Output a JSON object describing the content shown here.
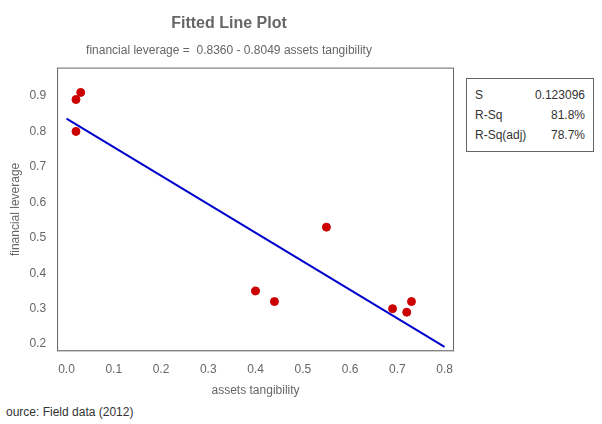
{
  "chart_data": {
    "type": "scatter",
    "title": "Fitted Line Plot",
    "subtitle": "financial leverage =  0.8360 - 0.8049 assets tangibility",
    "xlabel": "assets tangibility",
    "ylabel": "financial leverage",
    "series": [
      {
        "type": "scatter",
        "marker": "circle",
        "color": "#CC0000",
        "x": [
          0.02,
          0.03,
          0.02,
          0.4,
          0.44,
          0.55,
          0.69,
          0.72,
          0.73
        ],
        "values": [
          0.89,
          0.91,
          0.8,
          0.35,
          0.32,
          0.53,
          0.3,
          0.29,
          0.32
        ]
      },
      {
        "type": "line",
        "line_style": "solid",
        "color": "#0000CC",
        "x": [
          0.0,
          0.8
        ],
        "values": [
          0.836,
          0.19208
        ]
      }
    ],
    "xlim": [
      -0.02,
      0.82
    ],
    "ylim": [
      0.18,
      0.98
    ],
    "xticks": [
      {
        "value": 0.0,
        "label": "0.0"
      },
      0.1,
      0.2,
      0.3,
      0.4,
      0.5,
      0.6,
      0.7,
      0.8
    ],
    "yticks": [
      0.2,
      0.3,
      0.4,
      0.5,
      0.6,
      0.7,
      0.8,
      0.9
    ],
    "grid": false,
    "annotations": [
      {
        "label": "S",
        "text": "0.123096"
      },
      {
        "label": "R-Sq",
        "text": "81.8%"
      },
      {
        "label": "R-Sq(adj)",
        "text": "78.7%"
      }
    ],
    "source": "ource: Field data (2012)"
  }
}
